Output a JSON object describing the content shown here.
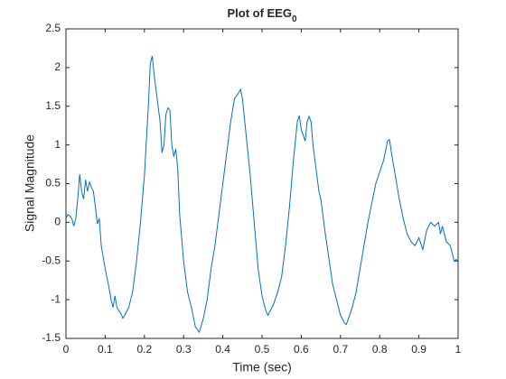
{
  "chart_data": {
    "type": "line",
    "title": "Plot of EEG",
    "title_subscript": "0",
    "x_label": "Time (sec)",
    "y_label": "Signal Magnitude",
    "color": "#0072bd",
    "grid": false,
    "x": [
      0,
      0.005,
      0.01,
      0.015,
      0.02,
      0.025,
      0.03,
      0.035,
      0.04,
      0.045,
      0.05,
      0.055,
      0.06,
      0.065,
      0.07,
      0.075,
      0.08,
      0.085,
      0.09,
      0.1,
      0.11,
      0.115,
      0.12,
      0.125,
      0.13,
      0.14,
      0.145,
      0.15,
      0.16,
      0.17,
      0.18,
      0.19,
      0.2,
      0.21,
      0.215,
      0.22,
      0.225,
      0.23,
      0.24,
      0.245,
      0.25,
      0.255,
      0.26,
      0.265,
      0.27,
      0.275,
      0.28,
      0.285,
      0.29,
      0.3,
      0.31,
      0.32,
      0.33,
      0.34,
      0.35,
      0.36,
      0.37,
      0.38,
      0.39,
      0.4,
      0.41,
      0.42,
      0.43,
      0.44,
      0.445,
      0.45,
      0.46,
      0.47,
      0.48,
      0.49,
      0.5,
      0.51,
      0.515,
      0.52,
      0.53,
      0.54,
      0.55,
      0.56,
      0.57,
      0.58,
      0.59,
      0.595,
      0.6,
      0.61,
      0.615,
      0.62,
      0.625,
      0.63,
      0.64,
      0.645,
      0.65,
      0.66,
      0.67,
      0.68,
      0.69,
      0.7,
      0.71,
      0.715,
      0.72,
      0.73,
      0.74,
      0.75,
      0.76,
      0.77,
      0.78,
      0.79,
      0.8,
      0.81,
      0.82,
      0.825,
      0.83,
      0.84,
      0.85,
      0.86,
      0.87,
      0.88,
      0.89,
      0.9,
      0.91,
      0.92,
      0.93,
      0.94,
      0.95,
      0.955,
      0.96,
      0.97,
      0.98,
      0.99,
      0.995,
      1
    ],
    "values": [
      0.05,
      0.1,
      0.08,
      0.05,
      -0.05,
      0.05,
      0.3,
      0.62,
      0.4,
      0.3,
      0.55,
      0.4,
      0.52,
      0.45,
      0.4,
      0.2,
      -0.02,
      0.05,
      -0.3,
      -0.6,
      -0.85,
      -1.0,
      -1.1,
      -0.95,
      -1.1,
      -1.18,
      -1.24,
      -1.2,
      -1.1,
      -0.9,
      -0.5,
      0.0,
      0.6,
      1.5,
      2.05,
      2.15,
      1.9,
      1.7,
      1.3,
      0.9,
      1.0,
      1.4,
      1.48,
      1.45,
      1.0,
      0.85,
      0.95,
      0.7,
      0.1,
      -0.5,
      -0.9,
      -1.1,
      -1.35,
      -1.42,
      -1.25,
      -1.0,
      -0.6,
      -0.3,
      0.1,
      0.5,
      0.9,
      1.3,
      1.6,
      1.67,
      1.72,
      1.6,
      1.1,
      0.6,
      0.0,
      -0.6,
      -0.95,
      -1.15,
      -1.2,
      -1.15,
      -1.05,
      -0.9,
      -0.7,
      -0.3,
      0.2,
      0.8,
      1.3,
      1.38,
      1.2,
      1.05,
      1.3,
      1.37,
      1.3,
      1.0,
      0.6,
      0.4,
      0.3,
      -0.1,
      -0.45,
      -0.8,
      -1.0,
      -1.2,
      -1.3,
      -1.32,
      -1.25,
      -1.1,
      -0.9,
      -0.6,
      -0.3,
      0.0,
      0.25,
      0.5,
      0.65,
      0.8,
      1.05,
      1.07,
      0.9,
      0.6,
      0.3,
      0.05,
      -0.15,
      -0.25,
      -0.3,
      -0.2,
      -0.35,
      -0.1,
      0.0,
      -0.05,
      0.0,
      -0.15,
      -0.05,
      -0.25,
      -0.3,
      -0.5,
      -0.48,
      -0.5
    ],
    "xlim": [
      0,
      1
    ],
    "xticks": [
      0,
      0.1,
      0.2,
      0.3,
      0.4,
      0.5,
      0.6,
      0.7,
      0.8,
      0.9,
      1
    ],
    "ylim": [
      -1.5,
      2.5
    ],
    "yticks": [
      -1.5,
      -1,
      -0.5,
      0,
      0.5,
      1,
      1.5,
      2,
      2.5
    ]
  }
}
